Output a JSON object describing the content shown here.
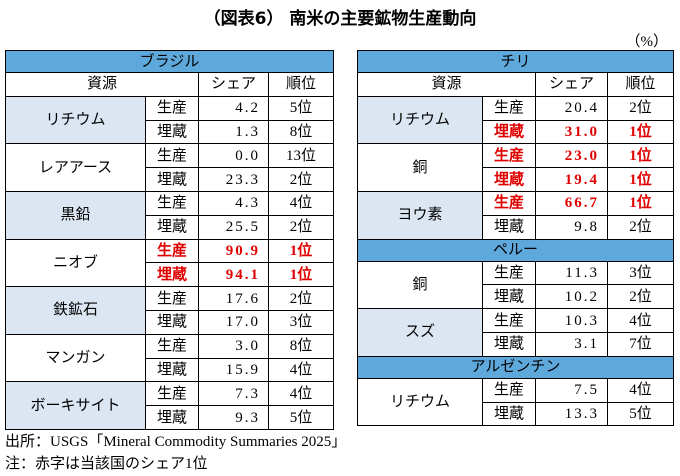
{
  "title": "（図表6） 南米の主要鉱物生産動向",
  "unit": "（%）",
  "panels": [
    {
      "sections": [
        {
          "title": "ブラジル",
          "headers": [
            "資源",
            "シェア",
            "順位"
          ],
          "groups": [
            {
              "name": "リチウム",
              "shaded": true,
              "rows": [
                {
                  "kind": "生産",
                  "share": "4.2",
                  "rank": "5位",
                  "highlight": false
                },
                {
                  "kind": "埋蔵",
                  "share": "1.3",
                  "rank": "8位",
                  "highlight": false
                }
              ]
            },
            {
              "name": "レアアース",
              "shaded": false,
              "rows": [
                {
                  "kind": "生産",
                  "share": "0.0",
                  "rank": "13位",
                  "highlight": false
                },
                {
                  "kind": "埋蔵",
                  "share": "23.3",
                  "rank": "2位",
                  "highlight": false
                }
              ]
            },
            {
              "name": "黒鉛",
              "shaded": true,
              "rows": [
                {
                  "kind": "生産",
                  "share": "4.3",
                  "rank": "4位",
                  "highlight": false
                },
                {
                  "kind": "埋蔵",
                  "share": "25.5",
                  "rank": "2位",
                  "highlight": false
                }
              ]
            },
            {
              "name": "ニオブ",
              "shaded": false,
              "rows": [
                {
                  "kind": "生産",
                  "share": "90.9",
                  "rank": "1位",
                  "highlight": true
                },
                {
                  "kind": "埋蔵",
                  "share": "94.1",
                  "rank": "1位",
                  "highlight": true
                }
              ]
            },
            {
              "name": "鉄鉱石",
              "shaded": true,
              "rows": [
                {
                  "kind": "生産",
                  "share": "17.6",
                  "rank": "2位",
                  "highlight": false
                },
                {
                  "kind": "埋蔵",
                  "share": "17.0",
                  "rank": "3位",
                  "highlight": false
                }
              ]
            },
            {
              "name": "マンガン",
              "shaded": false,
              "rows": [
                {
                  "kind": "生産",
                  "share": "3.0",
                  "rank": "8位",
                  "highlight": false
                },
                {
                  "kind": "埋蔵",
                  "share": "15.9",
                  "rank": "4位",
                  "highlight": false
                }
              ]
            },
            {
              "name": "ボーキサイト",
              "shaded": true,
              "rows": [
                {
                  "kind": "生産",
                  "share": "7.3",
                  "rank": "4位",
                  "highlight": false
                },
                {
                  "kind": "埋蔵",
                  "share": "9.3",
                  "rank": "5位",
                  "highlight": false
                }
              ]
            }
          ]
        }
      ]
    },
    {
      "sections": [
        {
          "title": "チリ",
          "headers": [
            "資源",
            "シェア",
            "順位"
          ],
          "groups": [
            {
              "name": "リチウム",
              "shaded": true,
              "rows": [
                {
                  "kind": "生産",
                  "share": "20.4",
                  "rank": "2位",
                  "highlight": false
                },
                {
                  "kind": "埋蔵",
                  "share": "31.0",
                  "rank": "1位",
                  "highlight": true
                }
              ]
            },
            {
              "name": "銅",
              "shaded": false,
              "rows": [
                {
                  "kind": "生産",
                  "share": "23.0",
                  "rank": "1位",
                  "highlight": true
                },
                {
                  "kind": "埋蔵",
                  "share": "19.4",
                  "rank": "1位",
                  "highlight": true
                }
              ]
            },
            {
              "name": "ヨウ素",
              "shaded": true,
              "rows": [
                {
                  "kind": "生産",
                  "share": "66.7",
                  "rank": "1位",
                  "highlight": true
                },
                {
                  "kind": "埋蔵",
                  "share": "9.8",
                  "rank": "2位",
                  "highlight": false
                }
              ]
            }
          ]
        },
        {
          "title": "ペルー",
          "groups": [
            {
              "name": "銅",
              "shaded": false,
              "rows": [
                {
                  "kind": "生産",
                  "share": "11.3",
                  "rank": "3位",
                  "highlight": false
                },
                {
                  "kind": "埋蔵",
                  "share": "10.2",
                  "rank": "2位",
                  "highlight": false
                }
              ]
            },
            {
              "name": "スズ",
              "shaded": true,
              "rows": [
                {
                  "kind": "生産",
                  "share": "10.3",
                  "rank": "4位",
                  "highlight": false
                },
                {
                  "kind": "埋蔵",
                  "share": "3.1",
                  "rank": "7位",
                  "highlight": false
                }
              ]
            }
          ]
        },
        {
          "title": "アルゼンチン",
          "groups": [
            {
              "name": "リチウム",
              "shaded": false,
              "rows": [
                {
                  "kind": "生産",
                  "share": "7.5",
                  "rank": "4位",
                  "highlight": false
                },
                {
                  "kind": "埋蔵",
                  "share": "13.3",
                  "rank": "5位",
                  "highlight": false
                }
              ]
            }
          ]
        }
      ]
    }
  ],
  "notes": [
    "出所：USGS「Mineral Commodity Summaries 2025」",
    "注：赤字は当該国のシェア1位"
  ]
}
